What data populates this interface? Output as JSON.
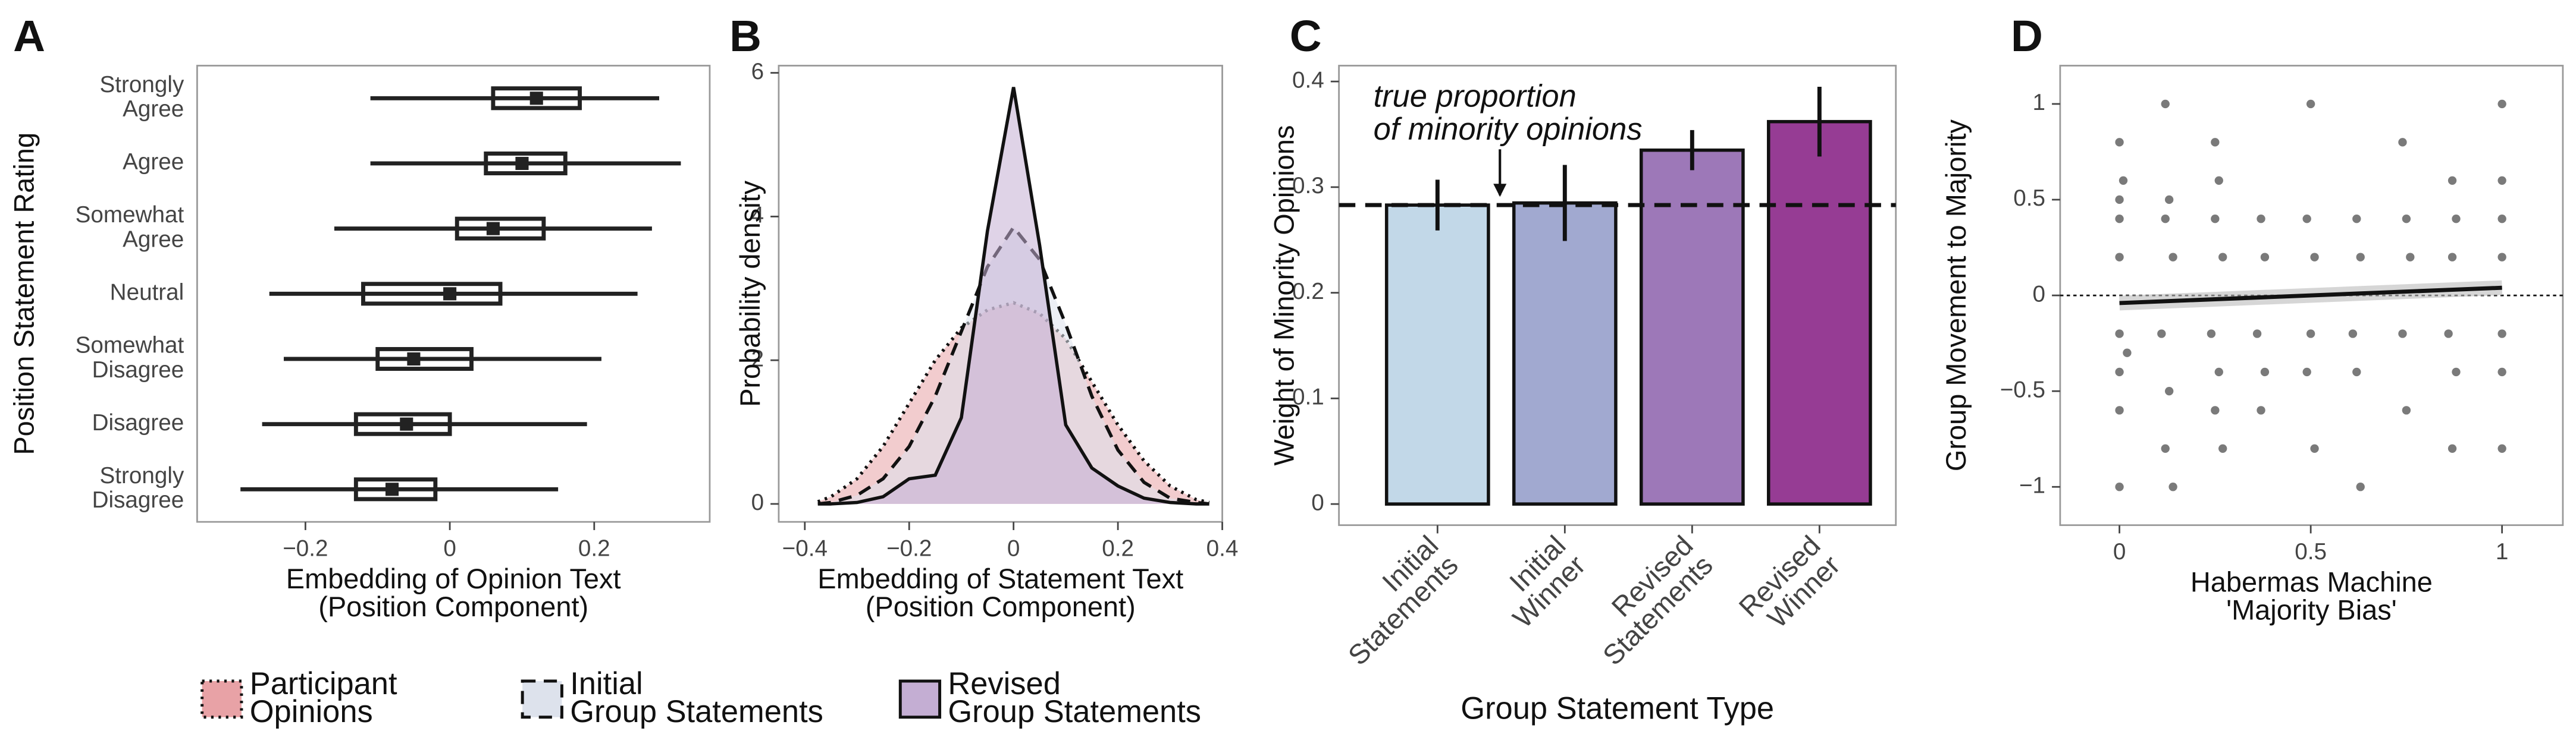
{
  "chart_data": [
    {
      "type": "box",
      "panel_label": "A",
      "categories": [
        [
          "Strongly",
          "Agree"
        ],
        [
          "Agree"
        ],
        [
          "Somewhat",
          "Agree"
        ],
        [
          "Neutral"
        ],
        [
          "Somewhat",
          "Disagree"
        ],
        [
          "Disagree"
        ],
        [
          "Strongly",
          "Disagree"
        ]
      ],
      "boxes": [
        {
          "low": -0.11,
          "q1": 0.06,
          "median": 0.12,
          "q3": 0.18,
          "high": 0.29
        },
        {
          "low": -0.11,
          "q1": 0.05,
          "median": 0.1,
          "q3": 0.16,
          "high": 0.32
        },
        {
          "low": -0.16,
          "q1": 0.01,
          "median": 0.06,
          "q3": 0.13,
          "high": 0.28
        },
        {
          "low": -0.25,
          "q1": -0.12,
          "median": 0,
          "q3": 0.07,
          "high": 0.26
        },
        {
          "low": -0.23,
          "q1": -0.1,
          "median": -0.05,
          "q3": 0.03,
          "high": 0.21
        },
        {
          "low": -0.26,
          "q1": -0.13,
          "median": -0.06,
          "q3": 0,
          "high": 0.19
        },
        {
          "low": -0.29,
          "q1": -0.13,
          "median": -0.08,
          "q3": -0.02,
          "high": 0.15
        }
      ],
      "color": "#222222",
      "xlim": [
        -0.35,
        0.36
      ],
      "xticks": [
        {
          "value": -0.2,
          "label": "−0.2"
        },
        0,
        0.2
      ],
      "xlabel": [
        "Embedding of Opinion Text",
        "(Position Component)"
      ],
      "ylabel": "Position Statement Rating"
    },
    {
      "type": "density",
      "panel_label": "B",
      "x": [
        -0.375,
        -0.35,
        -0.3,
        -0.25,
        -0.2,
        -0.15,
        -0.1,
        -0.05,
        0,
        0.05,
        0.1,
        0.15,
        0.2,
        0.25,
        0.3,
        0.35,
        0.375
      ],
      "series": [
        {
          "name": [
            "Participant",
            "Opinions"
          ],
          "color": "#e8a2a6",
          "line_style": "dotted",
          "values": [
            0.03,
            0.1,
            0.35,
            0.8,
            1.4,
            2.0,
            2.45,
            2.7,
            2.8,
            2.65,
            2.3,
            1.7,
            1.1,
            0.6,
            0.25,
            0.06,
            0.02
          ]
        },
        {
          "name": [
            "Initial",
            "Group Statements"
          ],
          "color": "#dde2ec",
          "line_style": "dashed",
          "values": [
            0,
            0.02,
            0.12,
            0.35,
            0.8,
            1.5,
            2.4,
            3.3,
            3.85,
            3.4,
            2.5,
            1.5,
            0.75,
            0.3,
            0.08,
            0.02,
            0
          ]
        },
        {
          "name": [
            "Revised",
            "Group Statements"
          ],
          "color": "#c4aed3",
          "line_style": "solid",
          "values": [
            0,
            0,
            0.02,
            0.1,
            0.35,
            0.4,
            1.2,
            3.8,
            5.8,
            3.6,
            1.1,
            0.5,
            0.25,
            0.08,
            0.02,
            0,
            0
          ]
        }
      ],
      "xlim": [
        -0.45,
        0.4
      ],
      "xticks": [
        {
          "value": -0.4,
          "label": "−0.4"
        },
        {
          "value": -0.2,
          "label": "−0.2"
        },
        0,
        0.2,
        0.4
      ],
      "ylim": [
        -0.25,
        6.1
      ],
      "yticks": [
        0,
        2,
        4,
        6
      ],
      "xlabel": [
        "Embedding of Statement Text",
        "(Position Component)"
      ],
      "ylabel": "Probability density"
    },
    {
      "type": "bar",
      "panel_label": "C",
      "categories": [
        [
          "Initial",
          "Statements"
        ],
        [
          "Initial",
          "Winner"
        ],
        [
          "Revised",
          "Statements"
        ],
        [
          "Revised",
          "Winner"
        ]
      ],
      "values": [
        0.283,
        0.285,
        0.335,
        0.362
      ],
      "errors": [
        0.024,
        0.036,
        0.019,
        0.033
      ],
      "colors": [
        "#c2d8e8",
        "#a1a9d0",
        "#9d78b8",
        "#963c94"
      ],
      "reference": 0.283,
      "annotation": [
        "true proportion",
        "of minority opinions"
      ],
      "ylim": [
        -0.02,
        0.415
      ],
      "yticks": [
        0,
        0.1,
        0.2,
        0.3,
        0.4
      ],
      "xlabel": "Group Statement Type",
      "ylabel": "Weight of Minority Opinions"
    },
    {
      "type": "scatter",
      "panel_label": "D",
      "x": [
        0,
        0,
        0,
        0,
        0,
        0,
        0,
        0,
        0.01,
        0.02,
        0.12,
        0.13,
        0.12,
        0.14,
        0.11,
        0.13,
        0.12,
        0.14,
        0.25,
        0.26,
        0.25,
        0.27,
        0.24,
        0.26,
        0.25,
        0.27,
        0.37,
        0.38,
        0.36,
        0.38,
        0.37,
        0.5,
        0.49,
        0.51,
        0.5,
        0.49,
        0.51,
        0.62,
        0.63,
        0.61,
        0.62,
        0.63,
        0.74,
        0.75,
        0.76,
        0.74,
        0.75,
        0.87,
        0.88,
        0.87,
        0.86,
        0.88,
        0.87,
        1,
        1,
        1,
        1,
        1,
        1,
        1
      ],
      "values": [
        0.8,
        0.5,
        0.4,
        0.2,
        -0.2,
        -0.4,
        -0.6,
        -1,
        0.6,
        -0.3,
        1,
        0.5,
        0.4,
        0.2,
        -0.2,
        -0.5,
        -0.8,
        -1,
        0.8,
        0.6,
        0.4,
        0.2,
        -0.2,
        -0.4,
        -0.6,
        -0.8,
        0.4,
        0.2,
        -0.2,
        -0.4,
        -0.6,
        1,
        0.4,
        0.2,
        -0.2,
        -0.4,
        -0.8,
        0.4,
        0.2,
        -0.2,
        -0.4,
        -1,
        0.8,
        0.4,
        0.2,
        -0.2,
        -0.6,
        0.6,
        0.4,
        0.2,
        -0.2,
        -0.4,
        -0.8,
        1,
        0.6,
        0.4,
        0.2,
        -0.2,
        -0.4,
        -0.8
      ],
      "color": "#333333",
      "trend": {
        "x": [
          0,
          1
        ],
        "values": [
          -0.04,
          0.04
        ]
      },
      "reference": 0,
      "xlim": [
        -0.155,
        1.159
      ],
      "xticks": [
        0,
        0.5,
        1
      ],
      "ylim": [
        -1.2,
        1.2
      ],
      "yticks": [
        {
          "value": -1,
          "label": "−1"
        },
        {
          "value": -0.5,
          "label": "−0.5"
        },
        0,
        0.5,
        1
      ],
      "xlabel": [
        "Habermas Machine",
        "'Majority Bias'"
      ],
      "ylabel": "Group Movement to Majority"
    }
  ]
}
